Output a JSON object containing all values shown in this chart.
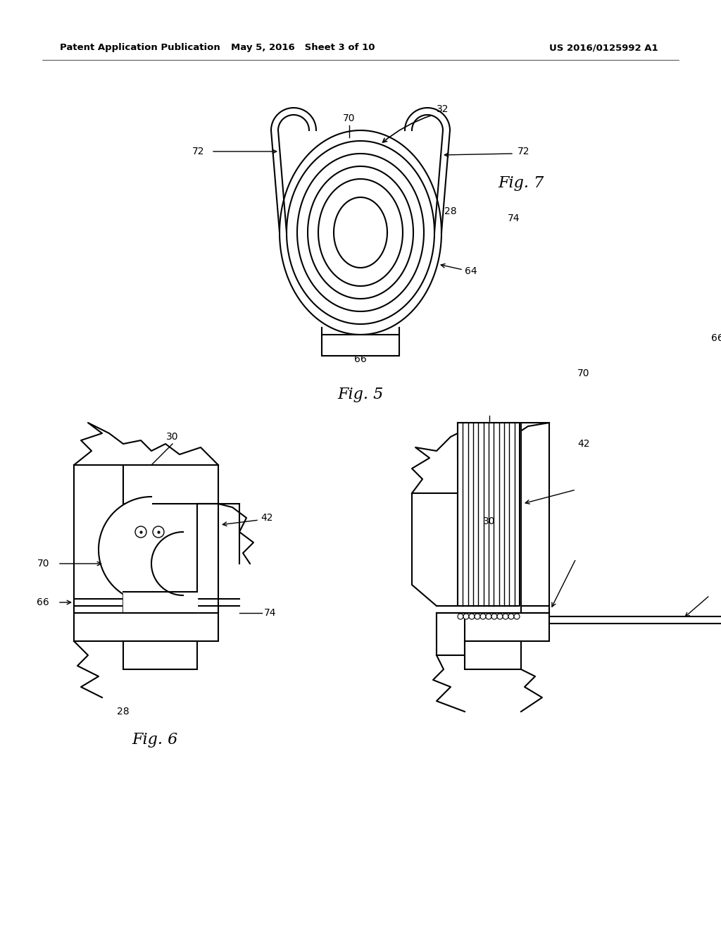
{
  "bg_color": "#ffffff",
  "line_color": "#000000",
  "header_left": "Patent Application Publication",
  "header_mid": "May 5, 2016   Sheet 3 of 10",
  "header_right": "US 2016/0125992 A1",
  "fig5_label": "Fig. 5",
  "fig6_label": "Fig. 6",
  "fig7_label": "Fig. 7"
}
